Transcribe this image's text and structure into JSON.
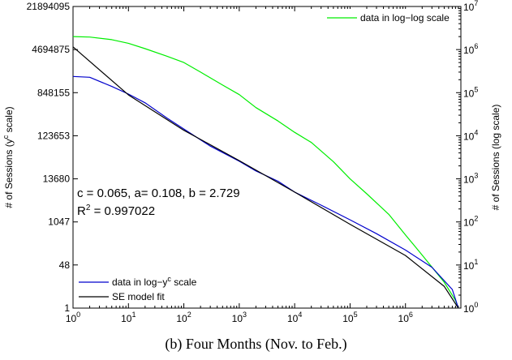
{
  "caption": "(b) Four Months (Nov. to Feb.)",
  "chart_data": {
    "type": "line",
    "x_axis": {
      "scale": "log",
      "range": [
        1,
        10000000
      ],
      "tick_labels": [
        {
          "value": 1,
          "base": "10",
          "exp": "0"
        },
        {
          "value": 10,
          "base": "10",
          "exp": "1"
        },
        {
          "value": 100,
          "base": "10",
          "exp": "2"
        },
        {
          "value": 1000,
          "base": "10",
          "exp": "3"
        },
        {
          "value": 10000,
          "base": "10",
          "exp": "4"
        },
        {
          "value": 100000,
          "base": "10",
          "exp": "5"
        },
        {
          "value": 1000000,
          "base": "10",
          "exp": "6"
        }
      ]
    },
    "left_axis": {
      "label_parts": [
        "# of Sessions (y",
        "c",
        " scale)"
      ],
      "scale": "power",
      "c": 0.065,
      "range": [
        1,
        21894095
      ],
      "tick_labels": [
        "1",
        "48",
        "1047",
        "13680",
        "123653",
        "848155",
        "4694875",
        "21894095"
      ]
    },
    "right_axis": {
      "label": "# of Sessions (log scale)",
      "scale": "log",
      "range": [
        1,
        10000000
      ],
      "tick_labels": [
        {
          "value": 1,
          "base": "10",
          "exp": "0"
        },
        {
          "value": 10,
          "base": "10",
          "exp": "1"
        },
        {
          "value": 100,
          "base": "10",
          "exp": "2"
        },
        {
          "value": 1000,
          "base": "10",
          "exp": "3"
        },
        {
          "value": 10000,
          "base": "10",
          "exp": "4"
        },
        {
          "value": 100000,
          "base": "10",
          "exp": "5"
        },
        {
          "value": 1000000,
          "base": "10",
          "exp": "6"
        },
        {
          "value": 10000000,
          "base": "10",
          "exp": "7"
        }
      ]
    },
    "annotation": {
      "line1": "c = 0.065, a= 0.108, b = 2.729",
      "line2_prefix": "R",
      "line2_sup": "2",
      "line2_rest": " = 0.997022"
    },
    "series": [
      {
        "name": "data in log−log scale",
        "legend_location": "top-right",
        "color": "#00ee00",
        "axis": "right",
        "points": [
          [
            1,
            2000000
          ],
          [
            2,
            1950000
          ],
          [
            5,
            1700000
          ],
          [
            10,
            1400000
          ],
          [
            20,
            1050000
          ],
          [
            50,
            700000
          ],
          [
            100,
            500000
          ],
          [
            200,
            300000
          ],
          [
            500,
            150000
          ],
          [
            1000,
            90000
          ],
          [
            2000,
            45000
          ],
          [
            5000,
            22000
          ],
          [
            10000,
            12000
          ],
          [
            20000,
            7000
          ],
          [
            50000,
            2500
          ],
          [
            100000,
            1000
          ],
          [
            200000,
            450
          ],
          [
            500000,
            150
          ],
          [
            1000000,
            50
          ],
          [
            2000000,
            17
          ],
          [
            5000000,
            4
          ],
          [
            8000000,
            1.5
          ],
          [
            9000000,
            1
          ]
        ]
      },
      {
        "name": "data in log−y^c scale",
        "legend_location": "bottom-left",
        "color": "#0000cc",
        "axis": "left",
        "points": [
          [
            1,
            1650000
          ],
          [
            2,
            1600000
          ],
          [
            5,
            1100000
          ],
          [
            10,
            800000
          ],
          [
            20,
            550000
          ],
          [
            50,
            280000
          ],
          [
            100,
            170000
          ],
          [
            300,
            75000
          ],
          [
            1000,
            35000
          ],
          [
            2000,
            21000
          ],
          [
            5000,
            12000
          ],
          [
            10000,
            6500
          ],
          [
            30000,
            3000
          ],
          [
            100000,
            1200
          ],
          [
            300000,
            480
          ],
          [
            1000000,
            150
          ],
          [
            3000000,
            40
          ],
          [
            7000000,
            6
          ],
          [
            9000000,
            1
          ]
        ]
      },
      {
        "name": "SE model fit",
        "legend_location": "bottom-left",
        "color": "#000000",
        "axis": "left",
        "points": [
          [
            1,
            5200000
          ],
          [
            10,
            770000
          ],
          [
            100,
            160000
          ],
          [
            1000,
            36000
          ],
          [
            10000,
            6500
          ],
          [
            100000,
            900
          ],
          [
            1000000,
            100
          ],
          [
            5000000,
            8
          ],
          [
            9000000,
            1
          ]
        ]
      }
    ]
  }
}
